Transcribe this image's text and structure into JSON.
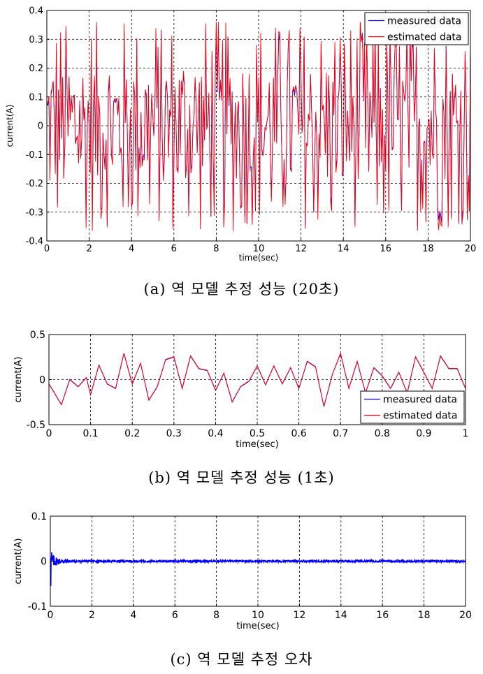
{
  "figures": [
    {
      "caption": "(a) 역 모델 추정 성능 (20초)"
    },
    {
      "caption": "(b) 역 모델 추정 성능 (1초)"
    },
    {
      "caption": "(c) 역 모델 추정 오차"
    }
  ],
  "chart_data": [
    {
      "type": "line",
      "xlabel": "time(sec)",
      "ylabel": "current(A)",
      "xlim": [
        0,
        20
      ],
      "ylim": [
        -0.4,
        0.4
      ],
      "xticks": [
        "0",
        "2",
        "4",
        "6",
        "8",
        "10",
        "12",
        "14",
        "16",
        "18",
        "20"
      ],
      "yticks": [
        "0.4",
        "0.3",
        "0.2",
        "0.1",
        "0",
        "-0.1",
        "-0.2",
        "-0.3",
        "-0.4"
      ],
      "grid": true,
      "legend": "top-right",
      "series": [
        {
          "name": "measured data",
          "color": "#0000ff"
        },
        {
          "name": "estimated data",
          "color": "#ff0000"
        }
      ],
      "x_spacing": 0.05,
      "amplitude_range": [
        -0.35,
        0.35
      ]
    },
    {
      "type": "line",
      "xlabel": "time(sec)",
      "ylabel": "current(A)",
      "xlim": [
        0,
        1
      ],
      "ylim": [
        -0.5,
        0.5
      ],
      "xticks": [
        "0",
        "0.1",
        "0.2",
        "0.3",
        "0.4",
        "0.5",
        "0.6",
        "0.7",
        "0.8",
        "0.9",
        "1"
      ],
      "yticks": [
        "0.5",
        "0",
        "-0.5"
      ],
      "grid": true,
      "legend": "bottom-right",
      "x": [
        0,
        0.03,
        0.05,
        0.07,
        0.09,
        0.1,
        0.12,
        0.14,
        0.16,
        0.18,
        0.2,
        0.22,
        0.24,
        0.26,
        0.28,
        0.3,
        0.32,
        0.34,
        0.36,
        0.38,
        0.4,
        0.42,
        0.44,
        0.46,
        0.48,
        0.5,
        0.52,
        0.54,
        0.56,
        0.58,
        0.6,
        0.62,
        0.64,
        0.66,
        0.68,
        0.7,
        0.72,
        0.74,
        0.76,
        0.78,
        0.8,
        0.82,
        0.84,
        0.86,
        0.88,
        0.9,
        0.92,
        0.94,
        0.96,
        0.98,
        1.0
      ],
      "series": [
        {
          "name": "measured data",
          "color": "#0000ff",
          "values": [
            -0.05,
            -0.28,
            0.0,
            -0.08,
            0.02,
            -0.17,
            0.16,
            -0.05,
            -0.1,
            0.29,
            -0.05,
            0.18,
            -0.23,
            -0.08,
            0.22,
            0.25,
            -0.1,
            0.26,
            0.12,
            0.1,
            -0.12,
            0.07,
            -0.25,
            -0.08,
            -0.02,
            0.15,
            -0.06,
            0.15,
            -0.05,
            0.13,
            -0.1,
            0.2,
            0.14,
            -0.3,
            0.05,
            0.29,
            -0.1,
            0.2,
            -0.15,
            0.13,
            0.04,
            -0.1,
            0.08,
            -0.15,
            0.25,
            0.08,
            -0.1,
            0.26,
            0.12,
            0.12,
            -0.1
          ]
        },
        {
          "name": "estimated data",
          "color": "#ff0000",
          "values": [
            -0.05,
            -0.28,
            0.0,
            -0.08,
            0.02,
            -0.17,
            0.16,
            -0.05,
            -0.1,
            0.29,
            -0.05,
            0.18,
            -0.23,
            -0.08,
            0.22,
            0.25,
            -0.1,
            0.26,
            0.12,
            0.1,
            -0.12,
            0.07,
            -0.25,
            -0.08,
            -0.02,
            0.15,
            -0.06,
            0.15,
            -0.05,
            0.13,
            -0.1,
            0.2,
            0.14,
            -0.3,
            0.05,
            0.29,
            -0.1,
            0.2,
            -0.15,
            0.13,
            0.04,
            -0.1,
            0.08,
            -0.15,
            0.25,
            0.08,
            -0.1,
            0.26,
            0.12,
            0.12,
            -0.1
          ]
        }
      ]
    },
    {
      "type": "line",
      "xlabel": "time(sec)",
      "ylabel": "current(A)",
      "xlim": [
        0,
        20
      ],
      "ylim": [
        -0.1,
        0.1
      ],
      "xticks": [
        "0",
        "2",
        "4",
        "6",
        "8",
        "10",
        "12",
        "14",
        "16",
        "18",
        "20"
      ],
      "yticks": [
        "0.1",
        "0",
        "-0.1"
      ],
      "grid": true,
      "series": [
        {
          "color": "#0000ff",
          "peak_min": -0.055,
          "peak_max": 0.02,
          "steady_amplitude": 0.002
        }
      ]
    }
  ]
}
